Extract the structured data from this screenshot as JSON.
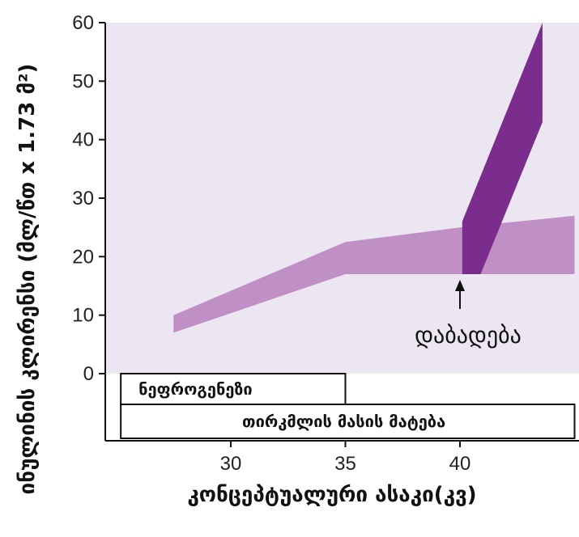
{
  "chart_data": {
    "type": "area",
    "ylabel": "ინულინის კლირენსი (მლ/წთ x 1.73 მ²)",
    "xlabel": "კონცეპტუალური ასაკი(კვ)",
    "xlim": [
      25.2,
      40
    ],
    "ylim": [
      0,
      60
    ],
    "x_ticks": [
      30,
      35,
      40
    ],
    "y_ticks": [
      0,
      10,
      20,
      30,
      40,
      50,
      60
    ],
    "grid": false,
    "plot_background": "#ebe6f2",
    "series": [
      {
        "fill": "#c08fc6",
        "x": [
          27.5,
          35,
          40,
          45,
          45,
          35,
          27.5
        ],
        "y": [
          10,
          22.5,
          25,
          27,
          17,
          17,
          7
        ]
      },
      {
        "fill": "#7a2d8c",
        "x": [
          40.1,
          43.6,
          43.6,
          40.9,
          40.1
        ],
        "y": [
          26,
          60,
          43,
          17,
          17
        ]
      }
    ],
    "annotations": [
      {
        "text": "დაბადება",
        "x": 40,
        "y": 7
      }
    ],
    "phase_boxes": [
      {
        "label": "ნეფროგენეზი",
        "x_start": 25.2,
        "x_end": 35
      },
      {
        "label": "თირკმლის მასის მატება",
        "x_start": 25.2,
        "x_end": 45
      }
    ]
  }
}
